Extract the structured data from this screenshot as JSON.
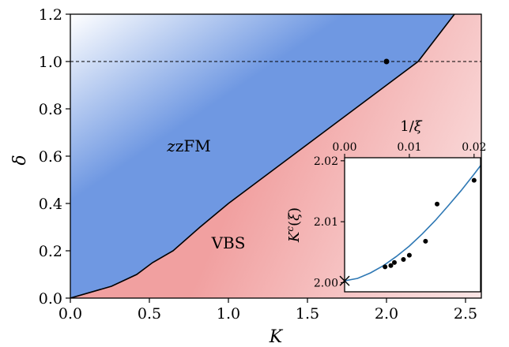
{
  "chart_data": [
    {
      "type": "area",
      "xlabel": "K",
      "ylabel": "δ",
      "xlim": [
        0,
        2.6
      ],
      "ylim": [
        0,
        1.2
      ],
      "x_ticks": [
        "0.0",
        "0.5",
        "1.0",
        "1.5",
        "2.0",
        "2.5"
      ],
      "y_ticks": [
        "0.0",
        "0.2",
        "0.4",
        "0.6",
        "0.8",
        "1.0",
        "1.2"
      ],
      "phase_boundary": {
        "x": [
          0.0,
          0.26,
          0.42,
          0.52,
          0.65,
          0.82,
          1.0,
          1.2,
          1.4,
          1.6,
          1.8,
          2.0,
          2.2,
          2.43
        ],
        "y": [
          0.0,
          0.05,
          0.1,
          0.15,
          0.2,
          0.3,
          0.4,
          0.5,
          0.6,
          0.7,
          0.8,
          0.9,
          1.0,
          1.2
        ]
      },
      "regions": [
        {
          "name": "zFM",
          "x": 0.75,
          "y": 0.62,
          "color": "#6f98e2"
        },
        {
          "name": "VBS",
          "x": 1.0,
          "y": 0.21,
          "color": "#f1a0a0"
        }
      ],
      "reference_line": {
        "y": 1.0,
        "style": "dashed"
      },
      "marked_point": {
        "x": 2.0,
        "y": 1.0
      }
    },
    {
      "type": "scatter",
      "xlabel": "1/ξ",
      "ylabel": "Kᶜ(ξ)",
      "xlim": [
        0,
        0.021
      ],
      "ylim": [
        1.9985,
        2.0205
      ],
      "x_ticks": [
        "0.00",
        "0.01",
        "0.02"
      ],
      "y_ticks": [
        "2.00",
        "2.01",
        "2.02"
      ],
      "points": {
        "x": [
          0.00625,
          0.00714,
          0.00769,
          0.00909,
          0.01,
          0.0125,
          0.01429,
          0.02
        ],
        "y": [
          2.0026,
          2.0028,
          2.0033,
          2.0038,
          2.0045,
          2.0068,
          2.0129,
          2.0168
        ]
      },
      "fit": {
        "x": [
          0,
          0.002,
          0.004,
          0.006,
          0.008,
          0.01,
          0.012,
          0.014,
          0.016,
          0.018,
          0.02,
          0.021
        ],
        "y": [
          2.0003,
          2.0007,
          2.0016,
          2.0028,
          2.0043,
          2.006,
          2.008,
          2.0102,
          2.0126,
          2.0151,
          2.0178,
          2.0192
        ]
      },
      "extrapolated_point": {
        "x": 0.0,
        "y": 2.0003
      }
    }
  ]
}
